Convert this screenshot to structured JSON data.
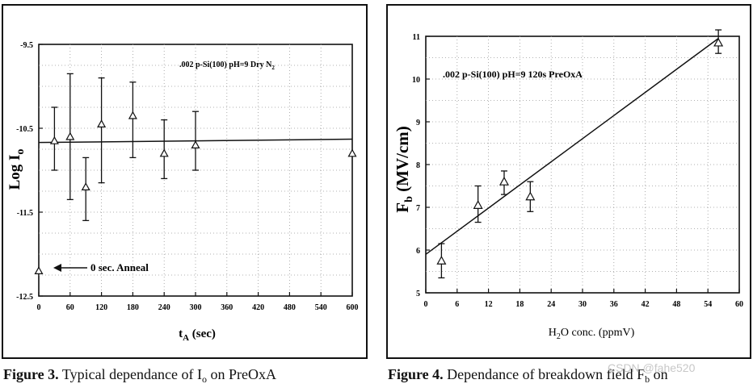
{
  "chart_data": [
    {
      "type": "scatter",
      "title": "",
      "annotation": ".002 p-Si(100) pH=9 Dry N",
      "annotation_sub": "2",
      "xlabel_main": "t",
      "xlabel_sub": "A",
      "xlabel_rest": " (sec)",
      "ylabel_main": "Log I",
      "ylabel_sub": "o",
      "xlim": [
        0,
        600
      ],
      "ylim": [
        -12.5,
        -9.5
      ],
      "xticks": [
        0,
        60,
        120,
        180,
        240,
        300,
        360,
        420,
        480,
        540,
        600
      ],
      "yticks": [
        -9.5,
        -10.5,
        -11.5,
        -12.5
      ],
      "ytick_labels": [
        "-9.5",
        "-10.5",
        "-11.5",
        "-12.5"
      ],
      "points": [
        {
          "x": 0,
          "y": -12.2,
          "lo": null,
          "hi": null
        },
        {
          "x": 30,
          "y": -10.65,
          "lo": -11.0,
          "hi": -10.25
        },
        {
          "x": 60,
          "y": -10.6,
          "lo": -11.35,
          "hi": -9.85
        },
        {
          "x": 90,
          "y": -11.2,
          "lo": -11.6,
          "hi": -10.85
        },
        {
          "x": 120,
          "y": -10.45,
          "lo": -11.15,
          "hi": -9.9
        },
        {
          "x": 180,
          "y": -10.35,
          "lo": -10.85,
          "hi": -9.95
        },
        {
          "x": 240,
          "y": -10.8,
          "lo": -11.1,
          "hi": -10.4
        },
        {
          "x": 300,
          "y": -10.7,
          "lo": -11.0,
          "hi": -10.3
        },
        {
          "x": 600,
          "y": -10.8,
          "lo": null,
          "hi": null
        }
      ],
      "fit_line": {
        "x": [
          0,
          600
        ],
        "y": [
          -10.67,
          -10.63
        ]
      },
      "arrow_label": "0 sec. Anneal"
    },
    {
      "type": "scatter",
      "title": "",
      "annotation": ".002 p-Si(100) pH=9 120s PreOxA",
      "xlabel_main": "H",
      "xlabel_sub": "2",
      "xlabel_rest": "O conc. (ppmV)",
      "ylabel_main": "F",
      "ylabel_sub": "b",
      "ylabel_rest": " (MV/cm)",
      "xlim": [
        0,
        60
      ],
      "ylim": [
        5,
        11
      ],
      "xticks": [
        0,
        6,
        12,
        18,
        24,
        30,
        36,
        42,
        48,
        54,
        60
      ],
      "yticks": [
        5,
        6,
        7,
        8,
        9,
        10,
        11
      ],
      "ytick_labels": [
        "5",
        "6",
        "7",
        "8",
        "9",
        "10",
        "11"
      ],
      "points": [
        {
          "x": 3,
          "y": 5.75,
          "lo": 5.35,
          "hi": 6.15
        },
        {
          "x": 10,
          "y": 7.05,
          "lo": 6.65,
          "hi": 7.5
        },
        {
          "x": 15,
          "y": 7.6,
          "lo": 7.3,
          "hi": 7.85
        },
        {
          "x": 20,
          "y": 7.25,
          "lo": 6.9,
          "hi": 7.6
        },
        {
          "x": 56,
          "y": 10.85,
          "lo": 10.6,
          "hi": 11.15
        }
      ],
      "fit_line": {
        "x": [
          0,
          56
        ],
        "y": [
          5.9,
          10.95
        ]
      }
    }
  ],
  "captions": {
    "left_bold": "Figure 3.",
    "left_rest": " Typical dependance of I",
    "left_sub": "o",
    "left_tail": " on PreOxA",
    "right_bold": "Figure 4.",
    "right_rest": " Dependance of breakdown field F",
    "right_sub": "b",
    "right_tail": " on"
  },
  "watermark": "CSDN @fahe520"
}
